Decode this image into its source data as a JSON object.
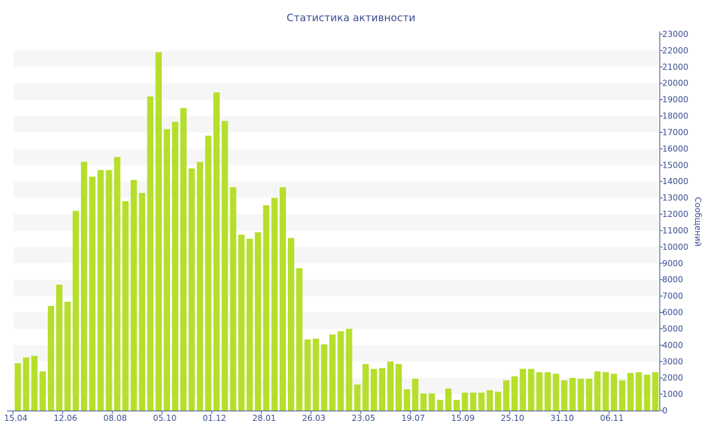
{
  "chart_data": {
    "type": "bar",
    "title": "Статистика активности",
    "xlabel": "",
    "ylabel": "Сообщений",
    "ylim": [
      0,
      23000
    ],
    "y_ticks": [
      0,
      1000,
      2000,
      3000,
      4000,
      5000,
      6000,
      7000,
      8000,
      9000,
      10000,
      11000,
      12000,
      13000,
      14000,
      15000,
      16000,
      17000,
      18000,
      19000,
      20000,
      21000,
      22000,
      23000
    ],
    "y_axis_side": "right",
    "grid": "alternating horizontal bands",
    "x_tick_labels": [
      {
        "index": 0,
        "label": "15.04"
      },
      {
        "index": 6,
        "label": "12.06"
      },
      {
        "index": 12,
        "label": "08.08"
      },
      {
        "index": 18,
        "label": "05.10"
      },
      {
        "index": 24,
        "label": "01.12"
      },
      {
        "index": 30,
        "label": "28.01"
      },
      {
        "index": 36,
        "label": "26.03"
      },
      {
        "index": 42,
        "label": "23.05"
      },
      {
        "index": 48,
        "label": "19.07"
      },
      {
        "index": 54,
        "label": "15.09"
      },
      {
        "index": 60,
        "label": "25.10"
      },
      {
        "index": 66,
        "label": "31.10"
      },
      {
        "index": 72,
        "label": "06.11"
      }
    ],
    "bar_color": "#b5df2b",
    "values": [
      2900,
      3250,
      3350,
      2400,
      6400,
      7700,
      6650,
      12200,
      15200,
      14300,
      14700,
      14700,
      15500,
      12800,
      14100,
      13300,
      19200,
      21900,
      17200,
      17650,
      18500,
      14800,
      15200,
      16800,
      19450,
      17700,
      13650,
      10750,
      10500,
      10900,
      12550,
      13000,
      13650,
      10550,
      8700,
      4350,
      4400,
      4050,
      4650,
      4850,
      5000,
      1600,
      2850,
      2550,
      2600,
      3000,
      2850,
      1300,
      1950,
      1050,
      1050,
      650,
      1350,
      650,
      1100,
      1100,
      1100,
      1250,
      1150,
      1850,
      2100,
      2550,
      2550,
      2350,
      2350,
      2250,
      1850,
      2000,
      1950,
      1950,
      2400,
      2350,
      2250,
      1850,
      2300,
      2350,
      2200,
      2350
    ]
  }
}
